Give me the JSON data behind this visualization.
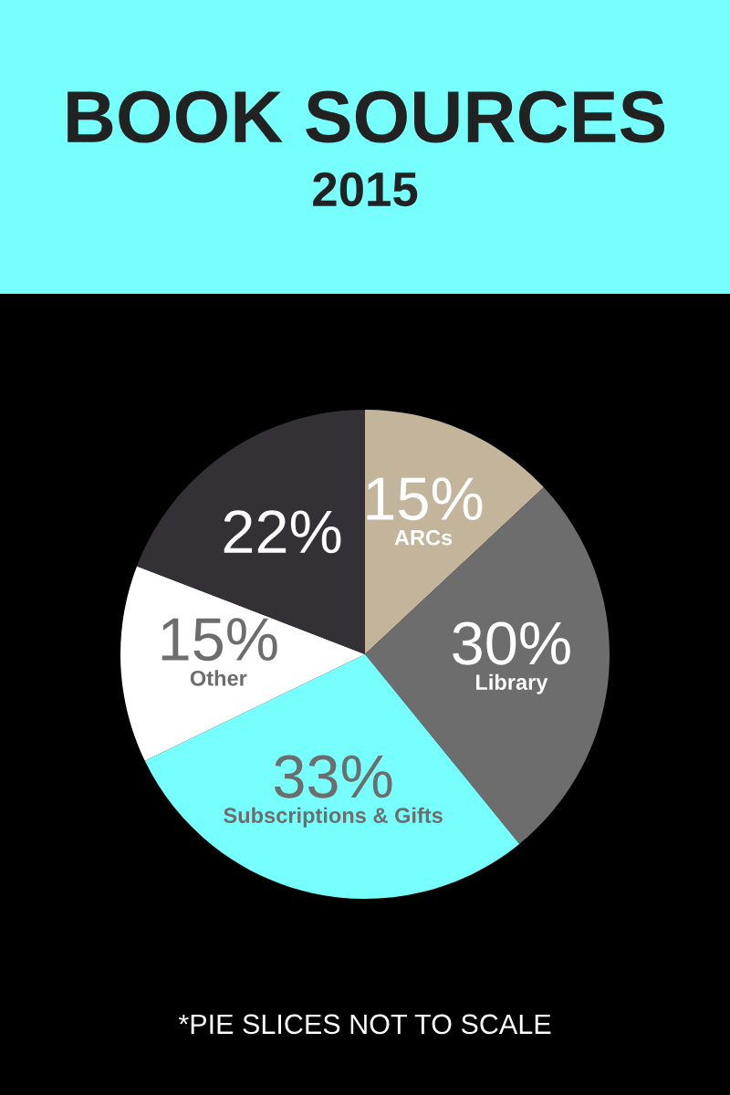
{
  "chart_data": {
    "type": "pie",
    "title": "BOOK SOURCES",
    "subtitle": "2015",
    "categories": [
      "ARCs",
      "Library",
      "Subscriptions & Gifts",
      "Other",
      null
    ],
    "values": [
      15,
      30,
      33,
      15,
      22
    ],
    "value_labels": [
      "15%",
      "30%",
      "33%",
      "15%",
      "22%"
    ],
    "colors": [
      "#c2b59b",
      "#6d6d6d",
      "#77fffd",
      "#ffffff",
      "#333135"
    ],
    "annotations": [
      "*PIE SLICES NOT TO SCALE"
    ]
  }
}
